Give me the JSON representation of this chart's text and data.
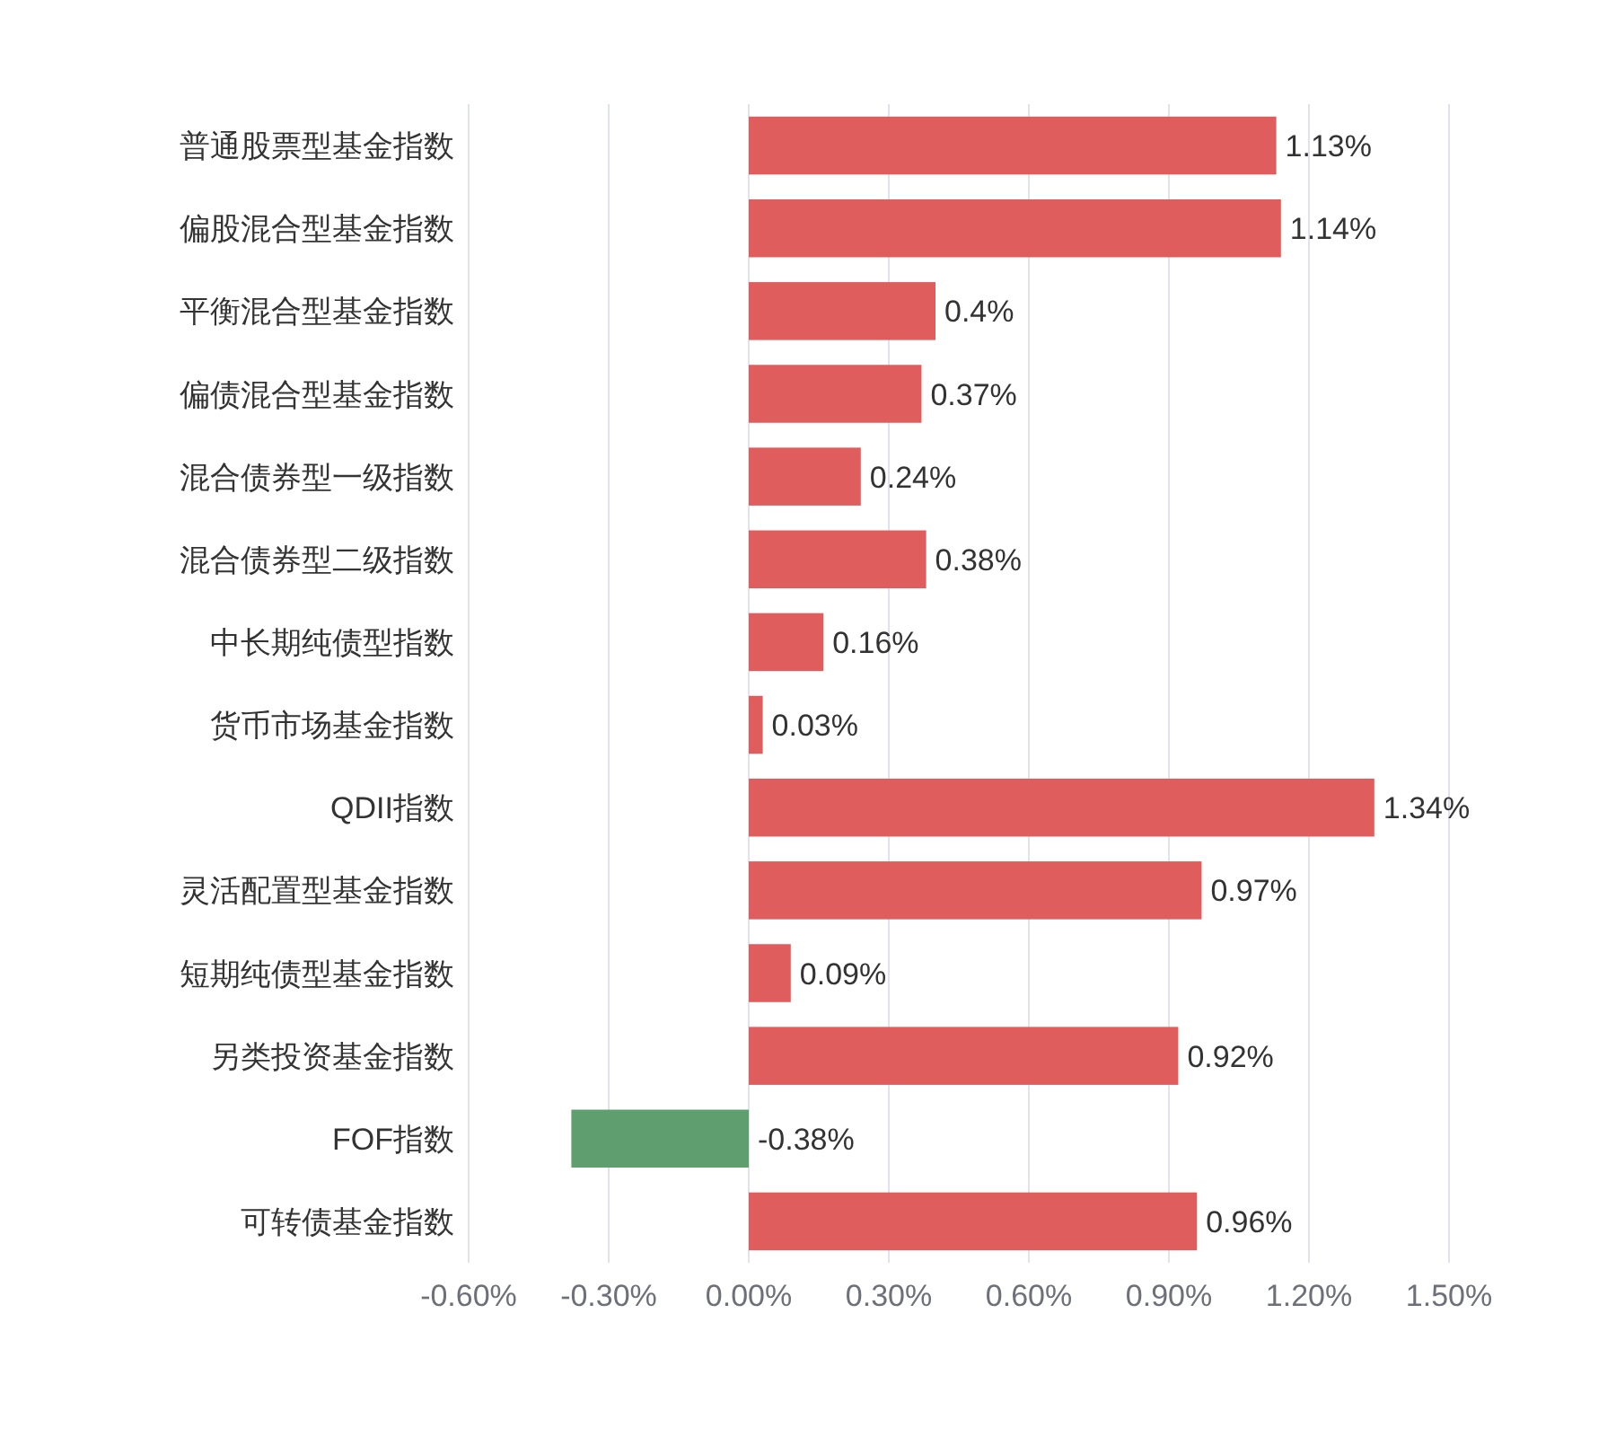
{
  "chart_data": {
    "type": "bar",
    "orientation": "horizontal",
    "categories": [
      "普通股票型基金指数",
      "偏股混合型基金指数",
      "平衡混合型基金指数",
      "偏债混合型基金指数",
      "混合债券型一级指数",
      "混合债券型二级指数",
      "中长期纯债型指数",
      "货币市场基金指数",
      "QDII指数",
      "灵活配置型基金指数",
      "短期纯债型基金指数",
      "另类投资基金指数",
      "FOF指数",
      "可转债基金指数"
    ],
    "values": [
      1.13,
      1.14,
      0.4,
      0.37,
      0.24,
      0.38,
      0.16,
      0.03,
      1.34,
      0.97,
      0.09,
      0.92,
      -0.38,
      0.96
    ],
    "value_labels": [
      "1.13%",
      "1.14%",
      "0.4%",
      "0.37%",
      "0.24%",
      "0.38%",
      "0.16%",
      "0.03%",
      "1.34%",
      "0.97%",
      "0.09%",
      "0.92%",
      "-0.38%",
      "0.96%"
    ],
    "colors": [
      "#e05d5d",
      "#e05d5d",
      "#e05d5d",
      "#e05d5d",
      "#e05d5d",
      "#e05d5d",
      "#e05d5d",
      "#e05d5d",
      "#e05d5d",
      "#e05d5d",
      "#e05d5d",
      "#e05d5d",
      "#5f9f6f",
      "#e05d5d"
    ],
    "xlim": [
      -0.6,
      1.5
    ],
    "xticks": [
      {
        "value": -0.6,
        "label": "-0.60%"
      },
      {
        "value": -0.3,
        "label": "-0.30%"
      },
      {
        "value": 0,
        "label": "0.00%"
      },
      {
        "value": 0.3,
        "label": "0.30%"
      },
      {
        "value": 0.6,
        "label": "0.60%"
      },
      {
        "value": 0.9,
        "label": "0.90%"
      },
      {
        "value": 1.2,
        "label": "1.20%"
      },
      {
        "value": 1.5,
        "label": "1.50%"
      }
    ],
    "grid": "x"
  }
}
